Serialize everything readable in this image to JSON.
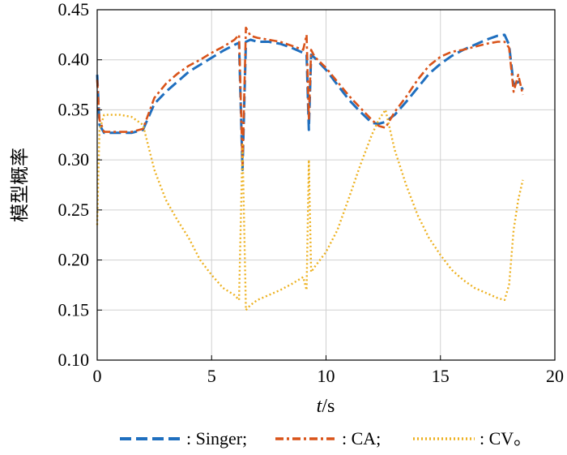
{
  "chart_data": {
    "type": "line",
    "xlabel_italic": "t",
    "xlabel_rest": "/s",
    "ylabel": "模型概率",
    "xlim": [
      0,
      20
    ],
    "ylim": [
      0.1,
      0.45
    ],
    "xticks": [
      0,
      5,
      10,
      15,
      20
    ],
    "xtick_labels": [
      "0",
      "5",
      "10",
      "15",
      "20"
    ],
    "yticks": [
      0.1,
      0.15,
      0.2,
      0.25,
      0.3,
      0.35,
      0.4,
      0.45
    ],
    "ytick_labels": [
      "0.10",
      "0.15",
      "0.20",
      "0.25",
      "0.30",
      "0.35",
      "0.40",
      "0.45"
    ],
    "grid": true,
    "legend_position": "bottom",
    "series": [
      {
        "name": ": Singer;",
        "color": "#1f6fbf",
        "style": "dashed",
        "x": [
          0,
          0.1,
          0.3,
          0.6,
          1.0,
          1.5,
          2.0,
          2.5,
          3.0,
          3.5,
          4.0,
          4.5,
          5.0,
          5.5,
          6.0,
          6.2,
          6.35,
          6.5,
          6.7,
          7.0,
          7.5,
          8.0,
          8.5,
          9.0,
          9.15,
          9.25,
          9.35,
          9.5,
          10.0,
          10.5,
          11.0,
          11.5,
          12.0,
          12.3,
          12.6,
          13.0,
          13.5,
          14.0,
          14.5,
          15.0,
          15.5,
          16.0,
          16.5,
          17.0,
          17.5,
          17.8,
          18.0,
          18.2,
          18.4,
          18.6
        ],
        "y": [
          0.385,
          0.335,
          0.327,
          0.327,
          0.327,
          0.327,
          0.33,
          0.356,
          0.368,
          0.378,
          0.388,
          0.395,
          0.402,
          0.409,
          0.415,
          0.417,
          0.29,
          0.418,
          0.42,
          0.418,
          0.418,
          0.416,
          0.412,
          0.407,
          0.405,
          0.33,
          0.405,
          0.402,
          0.39,
          0.375,
          0.36,
          0.348,
          0.337,
          0.336,
          0.338,
          0.345,
          0.358,
          0.372,
          0.386,
          0.396,
          0.404,
          0.41,
          0.415,
          0.42,
          0.424,
          0.425,
          0.415,
          0.375,
          0.378,
          0.37
        ]
      },
      {
        "name": ": CA;",
        "color": "#d95319",
        "style": "dashdot",
        "x": [
          0,
          0.1,
          0.3,
          0.6,
          1.0,
          1.5,
          2.0,
          2.5,
          3.0,
          3.5,
          4.0,
          4.5,
          5.0,
          5.5,
          6.0,
          6.2,
          6.35,
          6.5,
          6.7,
          7.0,
          7.5,
          8.0,
          8.5,
          9.0,
          9.15,
          9.25,
          9.35,
          9.5,
          10.0,
          10.5,
          11.0,
          11.5,
          12.0,
          12.3,
          12.6,
          13.0,
          13.5,
          14.0,
          14.5,
          15.0,
          15.5,
          16.0,
          16.5,
          17.0,
          17.5,
          17.8,
          18.0,
          18.2,
          18.4,
          18.6
        ],
        "y": [
          0.38,
          0.34,
          0.328,
          0.328,
          0.328,
          0.328,
          0.331,
          0.362,
          0.376,
          0.386,
          0.394,
          0.4,
          0.407,
          0.413,
          0.42,
          0.425,
          0.295,
          0.432,
          0.424,
          0.422,
          0.42,
          0.418,
          0.414,
          0.41,
          0.425,
          0.34,
          0.41,
          0.403,
          0.392,
          0.378,
          0.364,
          0.352,
          0.34,
          0.334,
          0.332,
          0.348,
          0.363,
          0.38,
          0.394,
          0.403,
          0.408,
          0.41,
          0.413,
          0.416,
          0.418,
          0.418,
          0.412,
          0.368,
          0.385,
          0.365
        ]
      },
      {
        "name": ": CV。",
        "color": "#edb120",
        "style": "dotted",
        "x": [
          0,
          0.1,
          0.3,
          0.6,
          1.0,
          1.5,
          2.0,
          2.5,
          3.0,
          3.5,
          4.0,
          4.5,
          5.0,
          5.5,
          6.0,
          6.2,
          6.35,
          6.5,
          6.7,
          7.0,
          7.5,
          8.0,
          8.5,
          9.0,
          9.15,
          9.25,
          9.35,
          9.5,
          10.0,
          10.5,
          11.0,
          11.5,
          12.0,
          12.3,
          12.6,
          13.0,
          13.5,
          14.0,
          14.5,
          15.0,
          15.5,
          16.0,
          16.5,
          17.0,
          17.5,
          17.8,
          18.0,
          18.2,
          18.4,
          18.6
        ],
        "y": [
          0.235,
          0.33,
          0.345,
          0.345,
          0.345,
          0.343,
          0.335,
          0.29,
          0.26,
          0.24,
          0.222,
          0.2,
          0.185,
          0.172,
          0.165,
          0.16,
          0.315,
          0.15,
          0.155,
          0.16,
          0.165,
          0.17,
          0.176,
          0.183,
          0.17,
          0.3,
          0.188,
          0.193,
          0.208,
          0.23,
          0.262,
          0.295,
          0.325,
          0.34,
          0.35,
          0.31,
          0.275,
          0.245,
          0.222,
          0.205,
          0.19,
          0.18,
          0.172,
          0.167,
          0.162,
          0.16,
          0.175,
          0.23,
          0.26,
          0.28
        ]
      }
    ]
  }
}
